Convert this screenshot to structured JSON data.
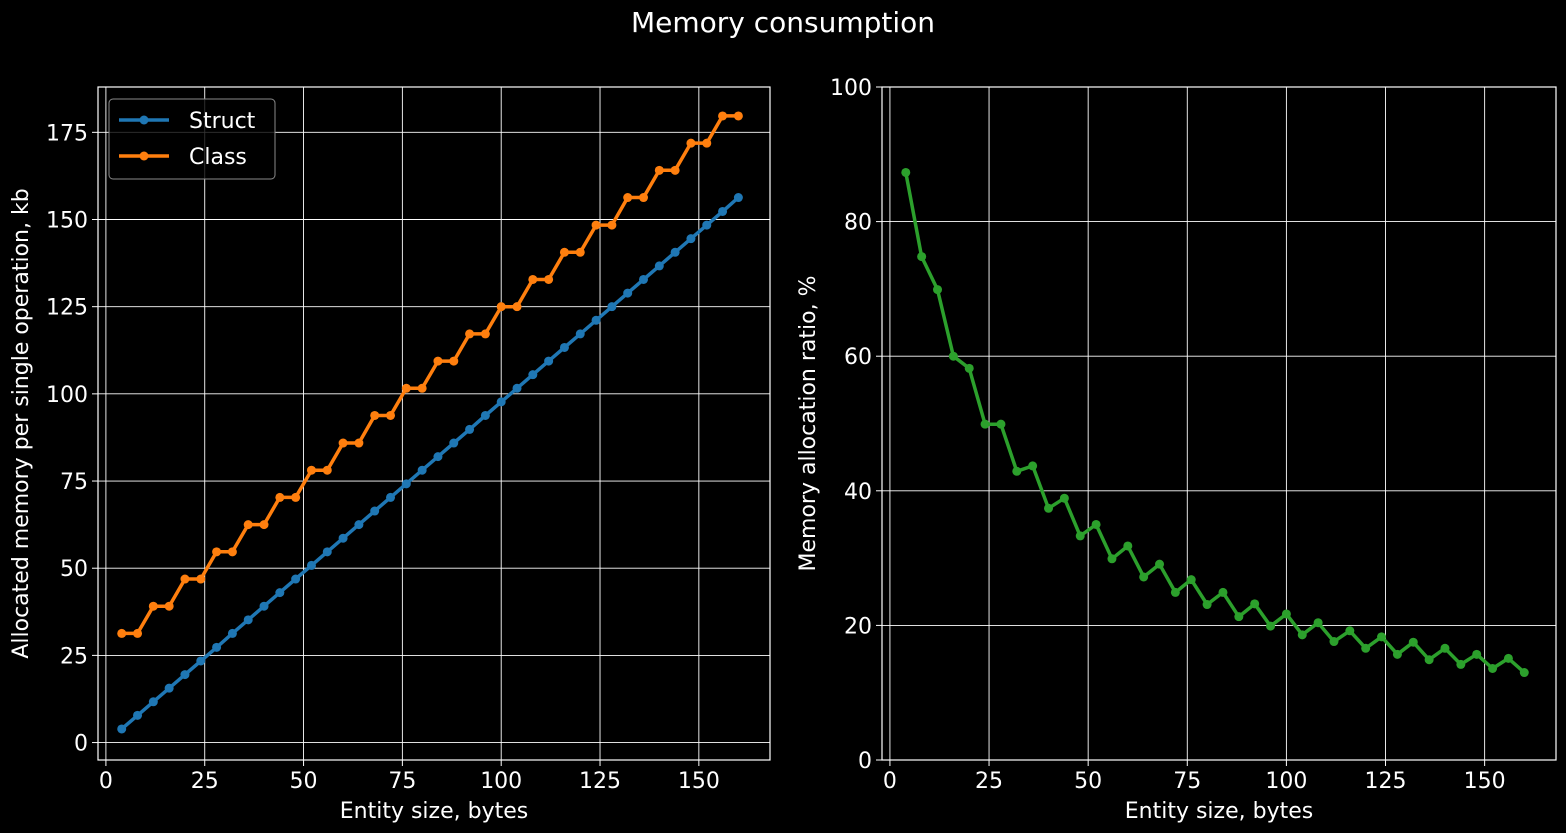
{
  "title": "Memory consumption",
  "colors": {
    "background": "#000000",
    "foreground": "#ffffff",
    "struct": "#1f77b4",
    "class": "#ff7f0e",
    "ratio": "#2ca02c"
  },
  "chart_data": [
    {
      "type": "line",
      "title": "",
      "xlabel": "Entity size, bytes",
      "ylabel": "Allocated memory per single operation, kb",
      "xlim": [
        -2,
        168
      ],
      "ylim": [
        -5,
        188
      ],
      "xticks": [
        0,
        25,
        50,
        75,
        100,
        125,
        150
      ],
      "yticks": [
        0,
        25,
        50,
        75,
        100,
        125,
        150,
        175
      ],
      "grid": true,
      "legend": "top-left",
      "x": [
        4,
        8,
        12,
        16,
        20,
        24,
        28,
        32,
        36,
        40,
        44,
        48,
        52,
        56,
        60,
        64,
        68,
        72,
        76,
        80,
        84,
        88,
        92,
        96,
        100,
        104,
        108,
        112,
        116,
        120,
        124,
        128,
        132,
        136,
        140,
        144,
        148,
        152,
        156,
        160
      ],
      "series": [
        {
          "name": "Struct",
          "color": "#1f77b4",
          "values": [
            3.9,
            7.8,
            11.7,
            15.6,
            19.5,
            23.4,
            27.3,
            31.3,
            35.2,
            39.1,
            43.0,
            46.9,
            50.8,
            54.7,
            58.6,
            62.5,
            66.4,
            70.3,
            74.2,
            78.1,
            82.0,
            85.9,
            89.8,
            93.8,
            97.7,
            101.6,
            105.5,
            109.4,
            113.3,
            117.2,
            121.1,
            125.0,
            128.9,
            132.8,
            136.7,
            140.6,
            144.5,
            148.4,
            152.3,
            156.3
          ]
        },
        {
          "name": "Class",
          "color": "#ff7f0e",
          "values": [
            31.3,
            31.3,
            39.1,
            39.1,
            46.9,
            46.9,
            54.7,
            54.7,
            62.5,
            62.5,
            70.3,
            70.3,
            78.1,
            78.1,
            85.9,
            85.9,
            93.8,
            93.8,
            101.6,
            101.6,
            109.4,
            109.4,
            117.2,
            117.2,
            125.0,
            125.0,
            132.8,
            132.8,
            140.6,
            140.6,
            148.4,
            148.4,
            156.3,
            156.3,
            164.1,
            164.1,
            171.9,
            171.9,
            179.7,
            179.7
          ]
        }
      ]
    },
    {
      "type": "line",
      "title": "",
      "xlabel": "Entity size, bytes",
      "ylabel": "Memory allocation ratio, %",
      "xlim": [
        -2,
        168
      ],
      "ylim": [
        0,
        100
      ],
      "xticks": [
        0,
        25,
        50,
        75,
        100,
        125,
        150
      ],
      "yticks": [
        0,
        20,
        40,
        60,
        80,
        100
      ],
      "grid": true,
      "x": [
        4,
        8,
        12,
        16,
        20,
        24,
        28,
        32,
        36,
        40,
        44,
        48,
        52,
        56,
        60,
        64,
        68,
        72,
        76,
        80,
        84,
        88,
        92,
        96,
        100,
        104,
        108,
        112,
        116,
        120,
        124,
        128,
        132,
        136,
        140,
        144,
        148,
        152,
        156,
        160
      ],
      "series": [
        {
          "color": "#2ca02c",
          "values": [
            87.3,
            74.8,
            69.9,
            60.0,
            58.2,
            49.9,
            49.9,
            42.9,
            43.7,
            37.4,
            38.9,
            33.3,
            35.0,
            29.9,
            31.8,
            27.2,
            29.1,
            24.9,
            26.8,
            23.1,
            24.9,
            21.3,
            23.2,
            19.9,
            21.7,
            18.6,
            20.4,
            17.6,
            19.2,
            16.6,
            18.3,
            15.7,
            17.5,
            14.9,
            16.6,
            14.2,
            15.7,
            13.6,
            15.1,
            13.0
          ]
        }
      ]
    }
  ]
}
